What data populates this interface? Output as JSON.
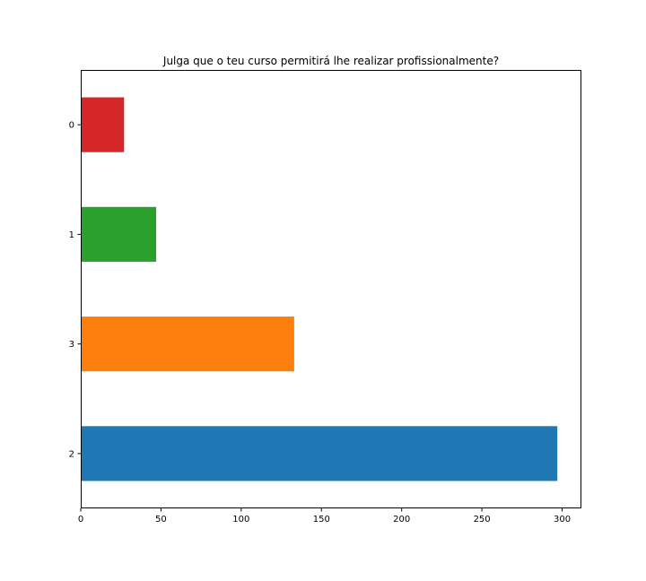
{
  "chart_data": {
    "type": "bar",
    "orientation": "horizontal",
    "title": "Julga que o teu curso permitirá lhe  realizar profissionalmente?",
    "xlabel": "",
    "ylabel": "",
    "categories": [
      "2",
      "3",
      "1",
      "0"
    ],
    "values": [
      297,
      133,
      47,
      27
    ],
    "colors": [
      "#1f77b4",
      "#ff7f0e",
      "#2ca02c",
      "#d62728"
    ],
    "xlim": [
      0,
      312
    ],
    "xticks": [
      0,
      50,
      100,
      150,
      200,
      250,
      300
    ],
    "grid": false,
    "legend": "none"
  }
}
